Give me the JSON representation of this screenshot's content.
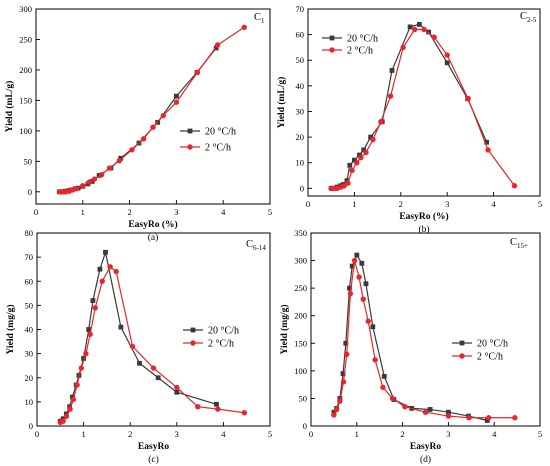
{
  "colors": {
    "rate_20": "#3a3a3a",
    "rate_2": "#e8262b",
    "axis": "#000000"
  },
  "chart_data": [
    {
      "id": "a",
      "type": "line",
      "title": "C",
      "title_sub": "1",
      "caption": "(a)",
      "xlabel": "EasyRo (%)",
      "ylabel": "Yield (mL/g)",
      "xlim": [
        0,
        5
      ],
      "ylim": [
        -20,
        300
      ],
      "xticks": [
        0,
        1,
        2,
        3,
        4,
        5
      ],
      "yticks": [
        0,
        50,
        100,
        150,
        200,
        250,
        300
      ],
      "legend_position": "center-right",
      "series": [
        {
          "name": "20 °C/h",
          "color": "#3a3a3a",
          "marker": "square",
          "x": [
            0.5,
            0.56,
            0.63,
            0.7,
            0.76,
            0.84,
            0.9,
            1.0,
            1.11,
            1.2,
            1.35,
            1.6,
            1.81,
            2.2,
            2.6,
            3.0,
            3.44,
            3.85
          ],
          "y": [
            0,
            0,
            1,
            2,
            3,
            5,
            6,
            9,
            13,
            17,
            27,
            39,
            55,
            80,
            114,
            157,
            196,
            236
          ]
        },
        {
          "name": "2 °C/h",
          "color": "#e8262b",
          "marker": "circle",
          "x": [
            0.5,
            0.56,
            0.63,
            0.71,
            0.78,
            0.86,
            1.0,
            1.14,
            1.25,
            1.4,
            1.57,
            1.78,
            2.05,
            2.3,
            2.5,
            2.72,
            3.0,
            3.45,
            3.88,
            4.45
          ],
          "y": [
            0,
            0,
            0,
            1,
            3,
            5,
            10,
            16,
            21,
            28,
            39,
            51,
            69,
            87,
            106,
            125,
            147,
            196,
            241,
            270
          ]
        }
      ]
    },
    {
      "id": "b",
      "type": "line",
      "title": "C",
      "title_sub": "2-5",
      "caption": "(b)",
      "xlabel": "EasyRo (%)",
      "ylabel": "Yield (mL/g)",
      "xlim": [
        0,
        5
      ],
      "ylim": [
        -3,
        70
      ],
      "xticks": [
        0,
        1,
        2,
        3,
        4,
        5
      ],
      "yticks": [
        0,
        10,
        20,
        30,
        40,
        50,
        60,
        70
      ],
      "legend_position": "top-left",
      "series": [
        {
          "name": "20 °C/h",
          "color": "#3a3a3a",
          "marker": "square",
          "x": [
            0.5,
            0.56,
            0.63,
            0.7,
            0.76,
            0.84,
            0.9,
            1.0,
            1.11,
            1.2,
            1.35,
            1.6,
            1.81,
            2.2,
            2.4,
            2.6,
            3.0,
            3.44,
            3.85
          ],
          "y": [
            0,
            0,
            0.5,
            1,
            1.5,
            3,
            9,
            11,
            13,
            15,
            20,
            26,
            46,
            63,
            64,
            61,
            49,
            35,
            18
          ]
        },
        {
          "name": "2 °C/h",
          "color": "#e8262b",
          "marker": "circle",
          "x": [
            0.5,
            0.56,
            0.63,
            0.71,
            0.78,
            0.86,
            0.95,
            1.05,
            1.14,
            1.25,
            1.4,
            1.57,
            1.78,
            2.05,
            2.3,
            2.5,
            2.72,
            3.0,
            3.45,
            3.88,
            4.45
          ],
          "y": [
            0,
            0,
            0,
            0.5,
            1,
            2,
            7,
            10,
            12,
            14,
            19,
            26,
            36,
            55,
            62,
            62,
            59,
            52,
            35,
            15,
            1
          ]
        }
      ]
    },
    {
      "id": "c",
      "type": "line",
      "title": "C",
      "title_sub": "6-14",
      "caption": "(c)",
      "xlabel": "EasyRo",
      "ylabel": "Yield (mg/g)",
      "xlim": [
        0,
        5
      ],
      "ylim": [
        0,
        80
      ],
      "xticks": [
        0,
        1,
        2,
        3,
        4,
        5
      ],
      "yticks": [
        0,
        10,
        20,
        30,
        40,
        50,
        60,
        70,
        80
      ],
      "legend_position": "center-right",
      "series": [
        {
          "name": "20 °C/h",
          "color": "#3a3a3a",
          "marker": "square",
          "x": [
            0.5,
            0.56,
            0.63,
            0.7,
            0.76,
            0.84,
            0.9,
            1.0,
            1.11,
            1.2,
            1.35,
            1.47,
            1.8,
            2.2,
            2.6,
            3.0,
            3.85
          ],
          "y": [
            2,
            3,
            5,
            8,
            12,
            17,
            21,
            28,
            40,
            52,
            65,
            72,
            41,
            26,
            20,
            14,
            9
          ]
        },
        {
          "name": "2 °C/h",
          "color": "#e8262b",
          "marker": "circle",
          "x": [
            0.5,
            0.56,
            0.63,
            0.71,
            0.78,
            0.86,
            0.95,
            1.05,
            1.14,
            1.25,
            1.4,
            1.57,
            1.7,
            2.05,
            2.5,
            3.0,
            3.45,
            3.88,
            4.45
          ],
          "y": [
            1.5,
            2,
            4,
            7,
            11,
            17,
            24,
            30,
            38,
            49,
            60,
            66,
            64,
            33,
            24,
            16,
            8,
            7,
            5.5
          ]
        }
      ]
    },
    {
      "id": "d",
      "type": "line",
      "title": "C",
      "title_sub": "15+",
      "caption": "(d)",
      "xlabel": "EasyRo",
      "ylabel": "Yield (mg/g)",
      "xlim": [
        0,
        5
      ],
      "ylim": [
        0,
        350
      ],
      "xticks": [
        0,
        1,
        2,
        3,
        4,
        5
      ],
      "yticks": [
        0,
        50,
        100,
        150,
        200,
        250,
        300,
        350
      ],
      "legend_position": "center-right",
      "series": [
        {
          "name": "20 °C/h",
          "color": "#3a3a3a",
          "marker": "square",
          "x": [
            0.5,
            0.56,
            0.63,
            0.7,
            0.76,
            0.84,
            0.9,
            1.0,
            1.11,
            1.2,
            1.35,
            1.6,
            1.81,
            2.2,
            2.6,
            3.0,
            3.44,
            3.85
          ],
          "y": [
            25,
            32,
            50,
            95,
            150,
            250,
            290,
            310,
            295,
            258,
            180,
            90,
            48,
            32,
            30,
            25,
            18,
            10
          ]
        },
        {
          "name": "2 °C/h",
          "color": "#e8262b",
          "marker": "circle",
          "x": [
            0.5,
            0.56,
            0.63,
            0.71,
            0.78,
            0.86,
            0.95,
            1.05,
            1.14,
            1.25,
            1.4,
            1.57,
            1.78,
            2.05,
            2.5,
            3.0,
            3.45,
            3.88,
            4.45
          ],
          "y": [
            20,
            30,
            45,
            80,
            130,
            240,
            300,
            270,
            230,
            190,
            120,
            70,
            50,
            35,
            25,
            18,
            15,
            15,
            15
          ]
        }
      ]
    }
  ]
}
